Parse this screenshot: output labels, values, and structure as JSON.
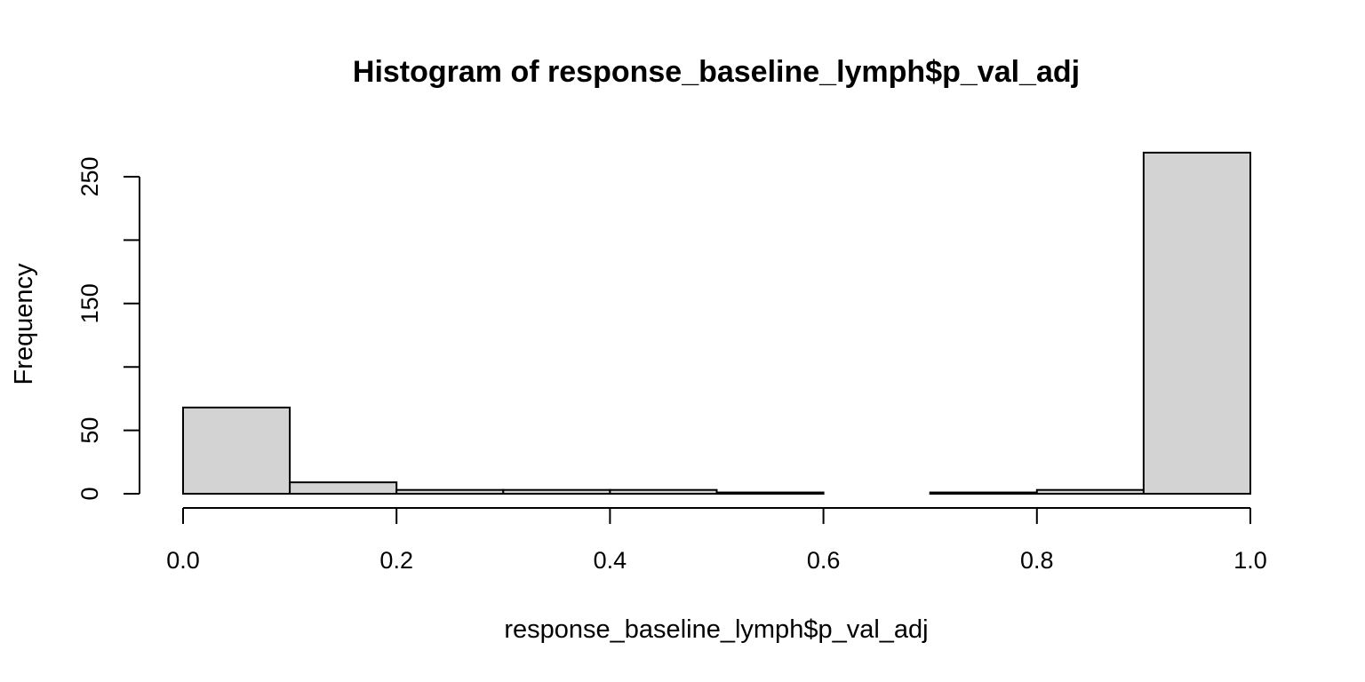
{
  "chart_data": {
    "type": "bar",
    "title": "Histogram of response_baseline_lymph$p_val_adj",
    "xlabel": "response_baseline_lymph$p_val_adj",
    "ylabel": "Frequency",
    "bins": [
      {
        "x0": 0.0,
        "x1": 0.1,
        "count": 68
      },
      {
        "x0": 0.1,
        "x1": 0.2,
        "count": 9
      },
      {
        "x0": 0.2,
        "x1": 0.3,
        "count": 3
      },
      {
        "x0": 0.3,
        "x1": 0.4,
        "count": 3
      },
      {
        "x0": 0.4,
        "x1": 0.5,
        "count": 3
      },
      {
        "x0": 0.5,
        "x1": 0.6,
        "count": 1
      },
      {
        "x0": 0.6,
        "x1": 0.7,
        "count": 0
      },
      {
        "x0": 0.7,
        "x1": 0.8,
        "count": 1
      },
      {
        "x0": 0.8,
        "x1": 0.9,
        "count": 3
      },
      {
        "x0": 0.9,
        "x1": 1.0,
        "count": 269
      }
    ],
    "xlim": [
      0.0,
      1.0
    ],
    "ylim": [
      0,
      250
    ],
    "x_ticks": [
      0.0,
      0.2,
      0.4,
      0.6,
      0.8,
      1.0
    ],
    "x_tick_labels": [
      "0.0",
      "0.2",
      "0.4",
      "0.6",
      "0.8",
      "1.0"
    ],
    "y_ticks": [
      0,
      50,
      100,
      150,
      200,
      250
    ],
    "y_tick_labels": [
      "0",
      "50",
      "",
      "150",
      "",
      "250"
    ],
    "bar_fill": "#d3d3d3",
    "bar_stroke": "#000000",
    "grid": false,
    "legend": "none"
  }
}
